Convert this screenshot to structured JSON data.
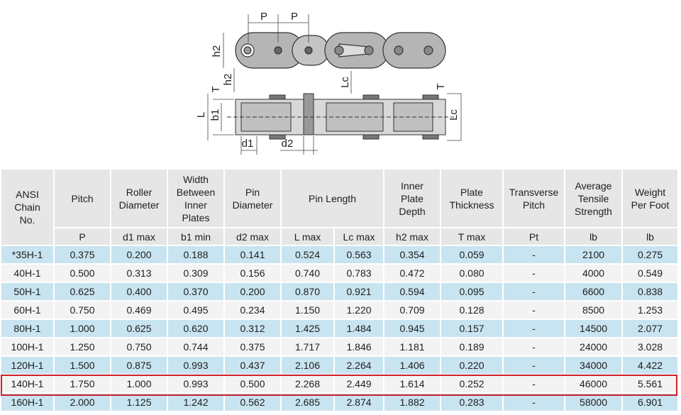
{
  "diagram": {
    "labels": [
      "P",
      "P",
      "h2",
      "h2",
      "T",
      "Lc",
      "T",
      "L",
      "b1",
      "Lc",
      "d1",
      "d2"
    ]
  },
  "table": {
    "header": [
      {
        "lines": [
          "ANSI",
          "Chain",
          "No."
        ]
      },
      {
        "lines": [
          "Pitch"
        ]
      },
      {
        "lines": [
          "Roller",
          "Diameter"
        ]
      },
      {
        "lines": [
          "Width",
          "Between",
          "Inner",
          "Plates"
        ]
      },
      {
        "lines": [
          "Pin",
          "Diameter"
        ]
      },
      {
        "lines": [
          "Pin Length"
        ]
      },
      {
        "lines": [
          "Inner",
          "Plate",
          "Depth"
        ]
      },
      {
        "lines": [
          "Plate",
          "Thickness"
        ]
      },
      {
        "lines": [
          "Transverse",
          "Pitch"
        ]
      },
      {
        "lines": [
          "Average",
          "Tensile",
          "Strength"
        ]
      },
      {
        "lines": [
          "Weight",
          "Per Foot"
        ]
      }
    ],
    "units": [
      "P",
      "d1 max",
      "b1 min",
      "d2 max",
      "L max",
      "Lc max",
      "h2 max",
      "T max",
      "Pt",
      "lb",
      "lb"
    ],
    "rows": [
      [
        "*35H-1",
        "0.375",
        "0.200",
        "0.188",
        "0.141",
        "0.524",
        "0.563",
        "0.354",
        "0.059",
        "-",
        "2100",
        "0.275"
      ],
      [
        "40H-1",
        "0.500",
        "0.313",
        "0.309",
        "0.156",
        "0.740",
        "0.783",
        "0.472",
        "0.080",
        "-",
        "4000",
        "0.549"
      ],
      [
        "50H-1",
        "0.625",
        "0.400",
        "0.370",
        "0.200",
        "0.870",
        "0.921",
        "0.594",
        "0.095",
        "-",
        "6600",
        "0.838"
      ],
      [
        "60H-1",
        "0.750",
        "0.469",
        "0.495",
        "0.234",
        "1.150",
        "1.220",
        "0.709",
        "0.128",
        "-",
        "8500",
        "1.253"
      ],
      [
        "80H-1",
        "1.000",
        "0.625",
        "0.620",
        "0.312",
        "1.425",
        "1.484",
        "0.945",
        "0.157",
        "-",
        "14500",
        "2.077"
      ],
      [
        "100H-1",
        "1.250",
        "0.750",
        "0.744",
        "0.375",
        "1.717",
        "1.846",
        "1.181",
        "0.189",
        "-",
        "24000",
        "3.028"
      ],
      [
        "120H-1",
        "1.500",
        "0.875",
        "0.993",
        "0.437",
        "2.106",
        "2.264",
        "1.406",
        "0.220",
        "-",
        "34000",
        "4.422"
      ],
      [
        "140H-1",
        "1.750",
        "1.000",
        "0.993",
        "0.500",
        "2.268",
        "2.449",
        "1.614",
        "0.252",
        "-",
        "46000",
        "5.561"
      ],
      [
        "160H-1",
        "2.000",
        "1.125",
        "1.242",
        "0.562",
        "2.685",
        "2.874",
        "1.882",
        "0.283",
        "-",
        "58000",
        "6.901"
      ]
    ]
  }
}
